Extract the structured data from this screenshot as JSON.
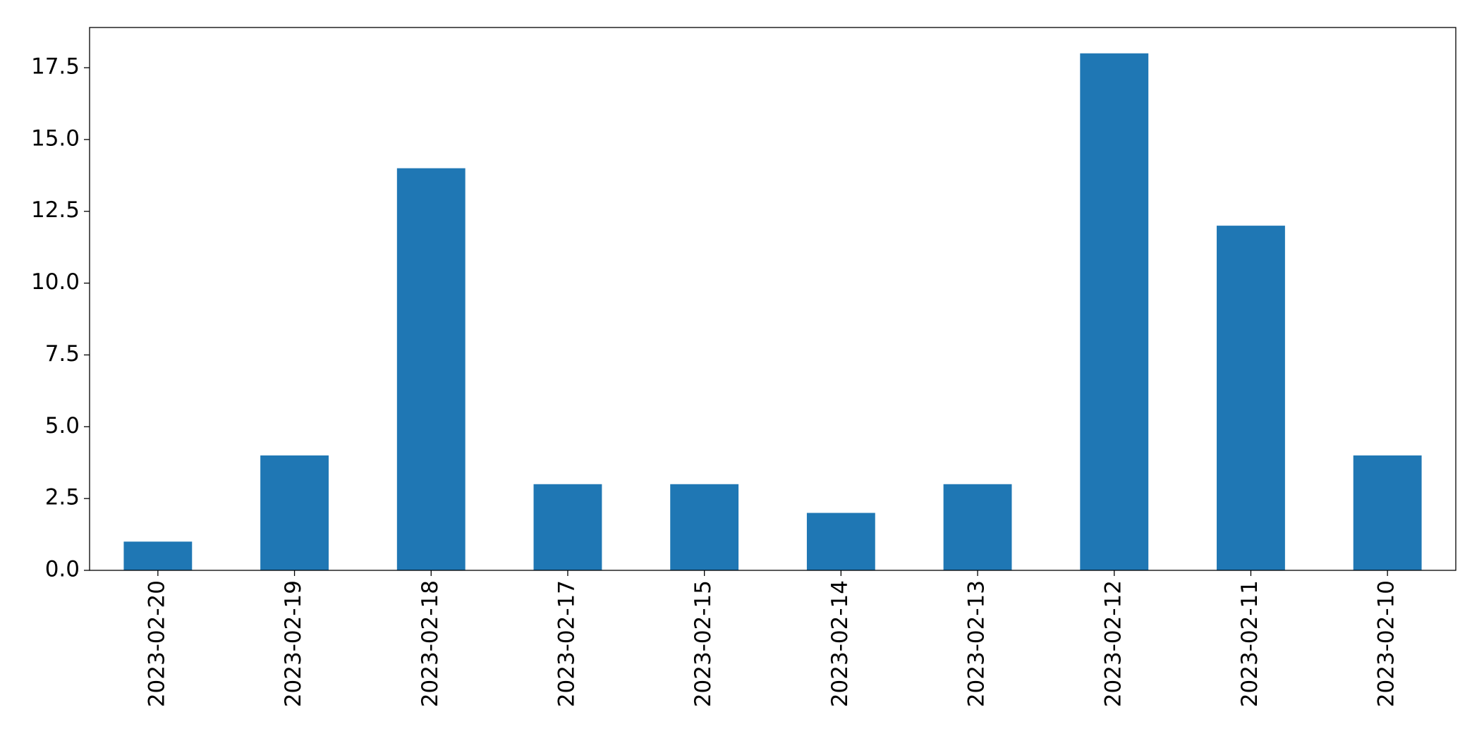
{
  "chart_data": {
    "type": "bar",
    "categories": [
      "2023-02-20",
      "2023-02-19",
      "2023-02-18",
      "2023-02-17",
      "2023-02-15",
      "2023-02-14",
      "2023-02-13",
      "2023-02-12",
      "2023-02-11",
      "2023-02-10"
    ],
    "values": [
      1,
      4,
      14,
      3,
      3,
      2,
      3,
      18,
      12,
      4
    ],
    "color": "#1f77b4",
    "ylim": [
      0,
      18.9
    ],
    "yticks": [
      {
        "value": 0,
        "label": "0.0"
      },
      2.5,
      {
        "value": 5,
        "label": "5.0"
      },
      7.5,
      {
        "value": 10,
        "label": "10.0"
      },
      12.5,
      {
        "value": 15,
        "label": "15.0"
      },
      17.5
    ],
    "grid": false
  }
}
